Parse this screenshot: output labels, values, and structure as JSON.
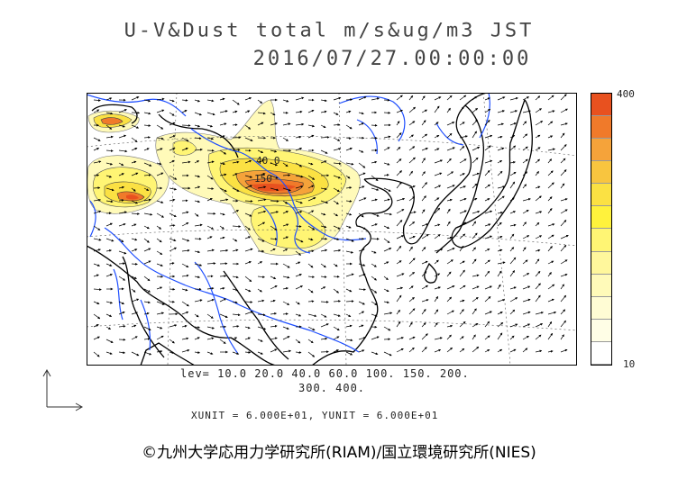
{
  "title": {
    "line1": "U-V&Dust total m/s&ug/m3 JST",
    "line2": "2016/07/27.00:00:00"
  },
  "colorbar": {
    "max_label": "400",
    "min_label": "10",
    "steps_top_to_bottom": [
      "#e8511f",
      "#f07a2a",
      "#f5a33a",
      "#f8c53f",
      "#fbe143",
      "#fff23c",
      "#fff574",
      "#fff79c",
      "#fffab9",
      "#fffcd4",
      "#fffee6",
      "#ffffff"
    ]
  },
  "levels": {
    "line1": "lev= 10.0 20.0 40.0 60.0 100. 150. 200.",
    "line2": "300. 400."
  },
  "units": "XUNIT = 6.000E+01, YUNIT = 6.000E+01",
  "copyright": "©九州大学応用力学研究所(RIAM)/国立環境研究所(NIES)",
  "map": {
    "contour_labels": [
      "40.0",
      "150"
    ],
    "colors": {
      "outline": "#000000",
      "rivers": "#1f4fff",
      "dust_low": "#fffab9",
      "dust_mid": "#fbe143",
      "dust_high": "#f07a2a",
      "dust_peak": "#e8511f"
    }
  }
}
